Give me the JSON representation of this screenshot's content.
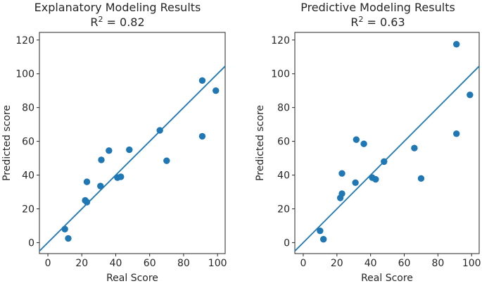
{
  "figure": {
    "background": "#ffffff",
    "point_color": "#1f77b4",
    "line_color": "#1f77b4",
    "axis_color": "#262626",
    "text_color": "#262626"
  },
  "chart_data": [
    {
      "type": "scatter",
      "title": "Explanatory Modeling Results",
      "subtitle": "R² = 0.82",
      "r_squared": 0.82,
      "xlabel": "Real Score",
      "ylabel": "Predicted score",
      "xlim": [
        -5,
        104.5
      ],
      "ylim": [
        -6.5,
        124.5
      ],
      "xticks": [
        0,
        20,
        40,
        60,
        80,
        100
      ],
      "yticks": [
        0,
        20,
        40,
        60,
        80,
        100,
        120
      ],
      "grid": false,
      "legend": "none",
      "identity_line": {
        "x1": -5,
        "y1": -5,
        "x2": 104.5,
        "y2": 104.5
      },
      "points": [
        [
          10,
          8
        ],
        [
          12,
          2.5
        ],
        [
          22,
          25
        ],
        [
          23,
          24
        ],
        [
          23,
          36
        ],
        [
          31,
          33.5
        ],
        [
          31.5,
          49
        ],
        [
          36,
          54.5
        ],
        [
          41,
          38.5
        ],
        [
          43,
          39
        ],
        [
          48,
          55
        ],
        [
          66,
          66.5
        ],
        [
          70,
          48.5
        ],
        [
          91,
          63
        ],
        [
          91,
          96
        ],
        [
          99,
          90
        ]
      ]
    },
    {
      "type": "scatter",
      "title": "Predictive Modeling Results",
      "subtitle": "R² = 0.63",
      "r_squared": 0.63,
      "xlabel": "Real Score",
      "ylabel": "Predicted score",
      "xlim": [
        -5,
        104.5
      ],
      "ylim": [
        -6.5,
        124.5
      ],
      "xticks": [
        0,
        20,
        40,
        60,
        80,
        100
      ],
      "yticks": [
        0,
        20,
        40,
        60,
        80,
        100,
        120
      ],
      "grid": false,
      "legend": "none",
      "identity_line": {
        "x1": -5,
        "y1": -5,
        "x2": 104.5,
        "y2": 104.5
      },
      "points": [
        [
          10,
          7
        ],
        [
          12,
          2
        ],
        [
          22,
          26.5
        ],
        [
          23,
          29
        ],
        [
          23,
          41
        ],
        [
          31,
          35.5
        ],
        [
          31.5,
          61
        ],
        [
          36,
          58.5
        ],
        [
          41,
          38.5
        ],
        [
          43,
          37.5
        ],
        [
          48,
          48
        ],
        [
          66,
          56
        ],
        [
          70,
          38
        ],
        [
          91,
          64.5
        ],
        [
          91,
          117.5
        ],
        [
          99,
          87.5
        ]
      ]
    }
  ]
}
